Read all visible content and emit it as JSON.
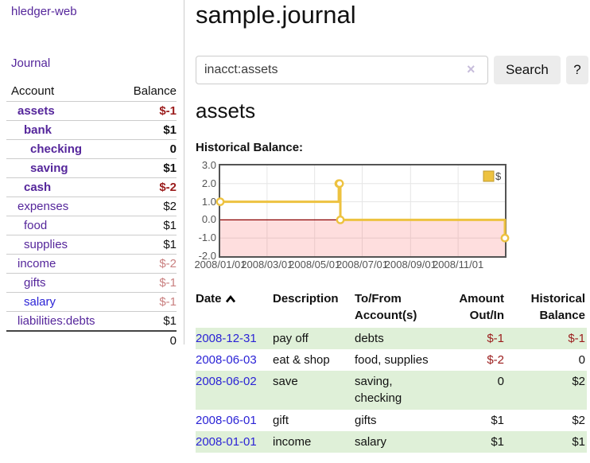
{
  "app": {
    "brand": "hledger-web",
    "nav_journal": "Journal"
  },
  "sidebar": {
    "column_headers": {
      "account": "Account",
      "balance": "Balance"
    },
    "accounts": [
      {
        "name": "assets",
        "depth": 1,
        "bold": true,
        "link": "purple",
        "balance": "$-1",
        "tone": "neg-strong"
      },
      {
        "name": "bank",
        "depth": 2,
        "bold": true,
        "link": "purple",
        "balance": "$1",
        "tone": "pos"
      },
      {
        "name": "checking",
        "depth": 3,
        "bold": true,
        "link": "purple",
        "balance": "0",
        "tone": "pos"
      },
      {
        "name": "saving",
        "depth": 3,
        "bold": true,
        "link": "purple",
        "balance": "$1",
        "tone": "pos"
      },
      {
        "name": "cash",
        "depth": 2,
        "bold": true,
        "link": "purple",
        "balance": "$-2",
        "tone": "neg-strong"
      },
      {
        "name": "expenses",
        "depth": 1,
        "bold": false,
        "link": "purple",
        "balance": "$2",
        "tone": "pos"
      },
      {
        "name": "food",
        "depth": 2,
        "bold": false,
        "link": "purple",
        "balance": "$1",
        "tone": "pos"
      },
      {
        "name": "supplies",
        "depth": 2,
        "bold": false,
        "link": "purple",
        "balance": "$1",
        "tone": "pos"
      },
      {
        "name": "income",
        "depth": 1,
        "bold": false,
        "link": "purple",
        "balance": "$-2",
        "tone": "neg-soft"
      },
      {
        "name": "gifts",
        "depth": 2,
        "bold": false,
        "link": "purple",
        "balance": "$-1",
        "tone": "neg-soft"
      },
      {
        "name": "salary",
        "depth": 2,
        "bold": false,
        "link": "blue",
        "balance": "$-1",
        "tone": "neg-soft"
      },
      {
        "name": "liabilities:debts",
        "depth": 1,
        "bold": false,
        "link": "purple",
        "balance": "$1",
        "tone": "pos"
      }
    ],
    "total": "0"
  },
  "header": {
    "title": "sample.journal"
  },
  "search": {
    "value": "inacct:assets",
    "clear_icon": "×",
    "button_label": "Search",
    "help_label": "?"
  },
  "register": {
    "heading": "assets",
    "chart_title": "Historical Balance:"
  },
  "chart_data": {
    "type": "line",
    "title": "Historical Balance",
    "step": true,
    "x_unit": "days since 2008-01-01",
    "xlim": [
      0,
      365
    ],
    "ylim": [
      -2,
      3
    ],
    "grid": true,
    "negative_region_shaded": true,
    "series": [
      {
        "name": "$",
        "color": "#edc240",
        "points": [
          {
            "date": "2008-01-01",
            "x": 0,
            "y": 1
          },
          {
            "date": "2008-06-01",
            "x": 152,
            "y": 2
          },
          {
            "date": "2008-06-02",
            "x": 153,
            "y": 2
          },
          {
            "date": "2008-06-03",
            "x": 154,
            "y": 0
          },
          {
            "date": "2008-12-31",
            "x": 365,
            "y": -1
          }
        ]
      }
    ],
    "x_ticks": [
      {
        "pos": 0,
        "label": "2008/01/01"
      },
      {
        "pos": 60,
        "label": "2008/03/01"
      },
      {
        "pos": 121,
        "label": "2008/05/01"
      },
      {
        "pos": 182,
        "label": "2008/07/01"
      },
      {
        "pos": 244,
        "label": "2008/09/01"
      },
      {
        "pos": 305,
        "label": "2008/11/01"
      }
    ],
    "y_ticks": [
      {
        "v": 3,
        "label": "3.0"
      },
      {
        "v": 2,
        "label": "2.0"
      },
      {
        "v": 1,
        "label": "1.0"
      },
      {
        "v": 0,
        "label": "0.0"
      },
      {
        "v": -1,
        "label": "-1.0"
      },
      {
        "v": -2,
        "label": "-2.0"
      }
    ],
    "legend": {
      "label": "$",
      "position": "top-right"
    },
    "colors": {
      "series_gold": "#edc240",
      "grid_line": "#e6e6e6",
      "border": "#545454",
      "zero_line": "#8b0000",
      "negative_fill": "#fcd7d7"
    }
  },
  "table": {
    "headers": [
      {
        "label": "Date",
        "sort": "asc"
      },
      {
        "label": "Description"
      },
      {
        "label": "To/From Account(s)"
      },
      {
        "label": "Amount Out/In",
        "numeric": true
      },
      {
        "label": "Historical Balance",
        "numeric": true
      }
    ],
    "rows": [
      {
        "date": "2008-12-31",
        "description": "pay off",
        "accounts": "debts",
        "amount": "$-1",
        "amount_neg": true,
        "balance": "$-1",
        "balance_neg": true,
        "striped": true
      },
      {
        "date": "2008-06-03",
        "description": "eat & shop",
        "accounts": "food, supplies",
        "amount": "$-2",
        "amount_neg": true,
        "balance": "0",
        "balance_neg": false,
        "striped": false
      },
      {
        "date": "2008-06-02",
        "description": "save",
        "accounts": "saving, checking",
        "amount": "0",
        "amount_neg": false,
        "balance": "$2",
        "balance_neg": false,
        "striped": true
      },
      {
        "date": "2008-06-01",
        "description": "gift",
        "accounts": "gifts",
        "amount": "$1",
        "amount_neg": false,
        "balance": "$2",
        "balance_neg": false,
        "striped": false
      },
      {
        "date": "2008-01-01",
        "description": "income",
        "accounts": "salary",
        "amount": "$1",
        "amount_neg": false,
        "balance": "$1",
        "balance_neg": false,
        "striped": true
      }
    ]
  },
  "colors": {
    "link_purple": "#55269b",
    "link_blue": "#2b23d6",
    "negative_strong": "#9b1c1c",
    "negative_soft": "#c98080",
    "row_stripe_green": "#dff0d8",
    "divider_gray": "#cccccc",
    "button_gray": "#ececec"
  }
}
